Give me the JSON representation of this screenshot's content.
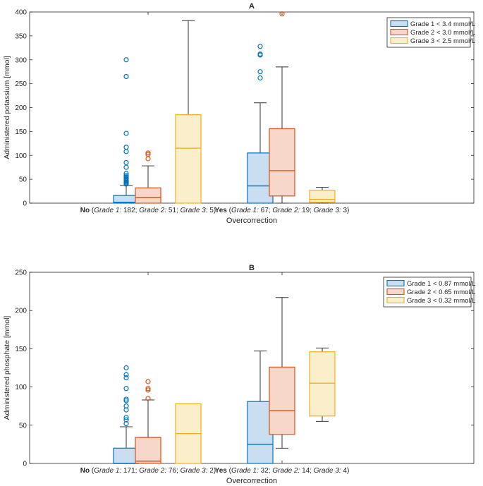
{
  "colors": {
    "grade1_stroke": "#0072BD",
    "grade1_fill": "#C9DEF0",
    "grade2_stroke": "#D95319",
    "grade2_fill": "#F6D7C9",
    "grade3_stroke": "#EDB120",
    "grade3_fill": "#FBEFCB",
    "whisker": "#333333",
    "axis": "#262626"
  },
  "chart_data": [
    {
      "type": "box",
      "title": "A",
      "xlabel": "Overcorrection",
      "ylabel": "Administered potassium [mmol]",
      "ylim": [
        0,
        400
      ],
      "yticks": [
        0,
        50,
        100,
        150,
        200,
        250,
        300,
        350,
        400
      ],
      "x_categories": [
        {
          "key": "No",
          "label_parts": [
            {
              "t": "No",
              "s": "b"
            },
            {
              "t": " (",
              "s": "n"
            },
            {
              "t": "Grade 1:",
              "s": "i"
            },
            {
              "t": " 182; ",
              "s": "n"
            },
            {
              "t": "Grade 2:",
              "s": "i"
            },
            {
              "t": " 51; ",
              "s": "n"
            },
            {
              "t": "Grade 3:",
              "s": "i"
            },
            {
              "t": " 5)",
              "s": "n"
            }
          ]
        },
        {
          "key": "Yes",
          "label_parts": [
            {
              "t": "Yes",
              "s": "b"
            },
            {
              "t": " (",
              "s": "n"
            },
            {
              "t": "Grade 1:",
              "s": "i"
            },
            {
              "t": " 67; ",
              "s": "n"
            },
            {
              "t": "Grade 2:",
              "s": "i"
            },
            {
              "t": " 19; ",
              "s": "n"
            },
            {
              "t": "Grade 3:",
              "s": "i"
            },
            {
              "t": " 3)",
              "s": "n"
            }
          ]
        }
      ],
      "legend": [
        "Grade 1 < 3.4 mmol/L",
        "Grade 2 < 3.0 mmol/L",
        "Grade 3 < 2.5 mmol/L"
      ],
      "series": [
        {
          "name": "Grade 1 < 3.4 mmol/L",
          "boxes": [
            {
              "category": "No",
              "min": 0,
              "q1": 0,
              "median": 2,
              "q3": 16,
              "max": 37,
              "outliers": [
                300,
                265,
                146,
                117,
                108,
                85,
                75,
                62,
                58,
                55,
                52,
                50,
                48,
                46,
                44,
                42,
                40
              ]
            },
            {
              "category": "Yes",
              "min": 0,
              "q1": 0,
              "median": 36,
              "q3": 105,
              "max": 210,
              "outliers": [
                328,
                312,
                310,
                275,
                262
              ]
            }
          ]
        },
        {
          "name": "Grade 2 < 3.0 mmol/L",
          "boxes": [
            {
              "category": "No",
              "min": 0,
              "q1": 0,
              "median": 12,
              "q3": 32,
              "max": 78,
              "outliers": [
                105,
                102,
                93
              ]
            },
            {
              "category": "Yes",
              "min": 0,
              "q1": 15,
              "median": 68,
              "q3": 156,
              "max": 285,
              "outliers": [
                396
              ]
            }
          ]
        },
        {
          "name": "Grade 3 < 2.5 mmol/L",
          "boxes": [
            {
              "category": "No",
              "min": 0,
              "q1": 0,
              "median": 115,
              "q3": 185,
              "max": 382,
              "outliers": []
            },
            {
              "category": "Yes",
              "min": 0,
              "q1": 2,
              "median": 8,
              "q3": 27,
              "max": 33,
              "outliers": []
            }
          ]
        }
      ]
    },
    {
      "type": "box",
      "title": "B",
      "xlabel": "Overcorrection",
      "ylabel": "Administered phosphate [mmol]",
      "ylim": [
        0,
        250
      ],
      "yticks": [
        0,
        50,
        100,
        150,
        200,
        250
      ],
      "x_categories": [
        {
          "key": "No",
          "label_parts": [
            {
              "t": "No",
              "s": "b"
            },
            {
              "t": " (",
              "s": "n"
            },
            {
              "t": "Grade 1:",
              "s": "i"
            },
            {
              "t": " 171; ",
              "s": "n"
            },
            {
              "t": "Grade 2:",
              "s": "i"
            },
            {
              "t": " 76; ",
              "s": "n"
            },
            {
              "t": "Grade 3:",
              "s": "i"
            },
            {
              "t": " 2)",
              "s": "n"
            }
          ]
        },
        {
          "key": "Yes",
          "label_parts": [
            {
              "t": "Yes",
              "s": "b"
            },
            {
              "t": " (",
              "s": "n"
            },
            {
              "t": "Grade 1:",
              "s": "i"
            },
            {
              "t": " 32; ",
              "s": "n"
            },
            {
              "t": "Grade 2:",
              "s": "i"
            },
            {
              "t": " 14; ",
              "s": "n"
            },
            {
              "t": "Grade 3:",
              "s": "i"
            },
            {
              "t": " 4)",
              "s": "n"
            }
          ]
        }
      ],
      "legend": [
        "Grade 1 < 0.87 mmol/L",
        "Grade 2 < 0.65 mmol/L",
        "Grade 3 < 0.32 mmol/L"
      ],
      "series": [
        {
          "name": "Grade 1 < 0.87 mmol/L",
          "boxes": [
            {
              "category": "No",
              "min": 0,
              "q1": 0,
              "median": 0,
              "q3": 20,
              "max": 48,
              "outliers": [
                125,
                116,
                112,
                98,
                84,
                82,
                75,
                70,
                60,
                57,
                52
              ]
            },
            {
              "category": "Yes",
              "min": 0,
              "q1": 0,
              "median": 25,
              "q3": 81,
              "max": 147,
              "outliers": []
            }
          ]
        },
        {
          "name": "Grade 2 < 0.65 mmol/L",
          "boxes": [
            {
              "category": "No",
              "min": 0,
              "q1": 0,
              "median": 3,
              "q3": 34,
              "max": 83,
              "outliers": [
                107,
                98,
                96,
                85
              ]
            },
            {
              "category": "Yes",
              "min": 20,
              "q1": 38,
              "median": 69,
              "q3": 126,
              "max": 217,
              "outliers": []
            }
          ]
        },
        {
          "name": "Grade 3 < 0.32 mmol/L",
          "boxes": [
            {
              "category": "No",
              "min": 0,
              "q1": 0,
              "median": 39,
              "q3": 78,
              "max": 78,
              "outliers": []
            },
            {
              "category": "Yes",
              "min": 55,
              "q1": 62,
              "median": 105,
              "q3": 146,
              "max": 151,
              "outliers": []
            }
          ]
        }
      ]
    }
  ]
}
